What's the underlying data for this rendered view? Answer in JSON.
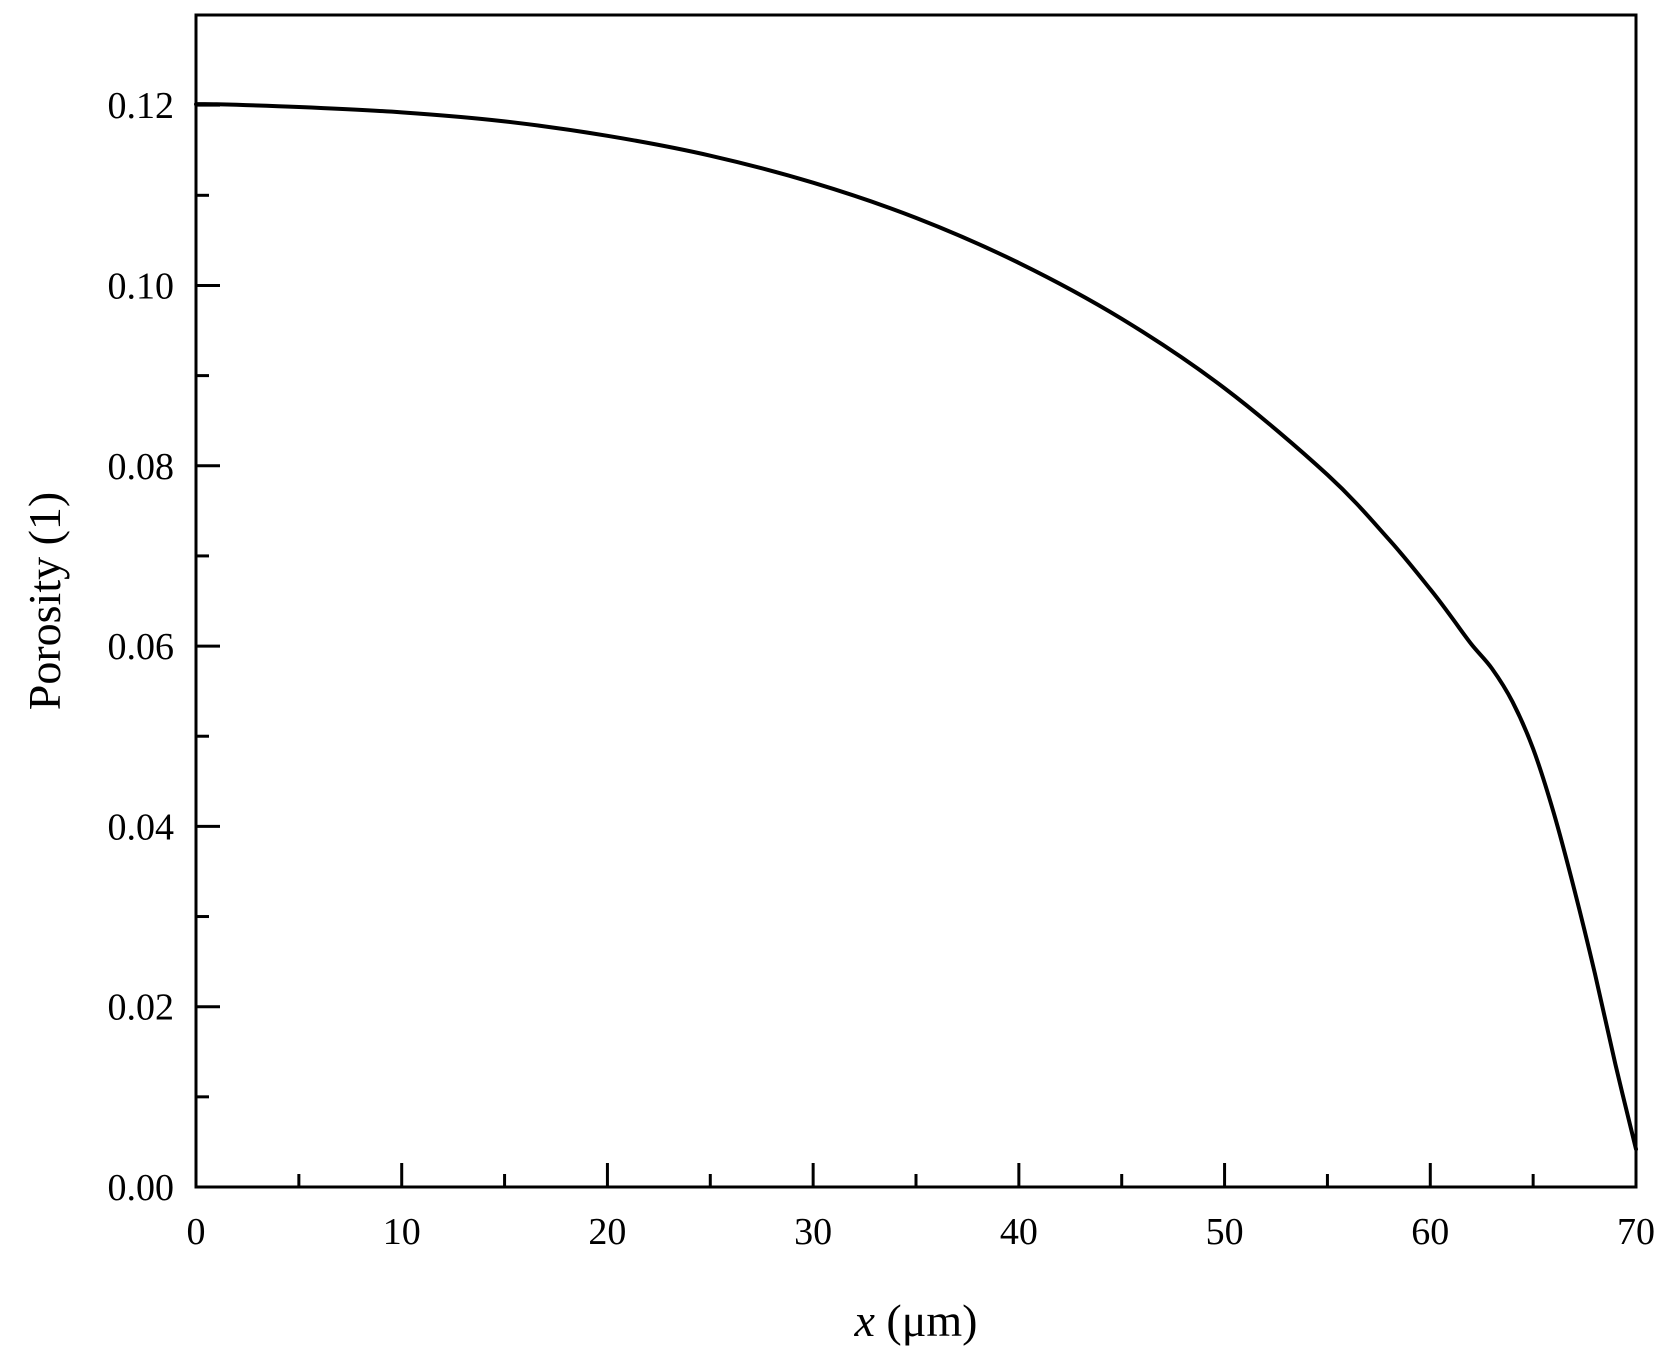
{
  "chart_data": {
    "type": "line",
    "title": "",
    "xlabel_var": "x",
    "xlabel_unit": " (μm)",
    "ylabel": "Porosity (1)",
    "xlim": [
      0,
      70
    ],
    "ylim": [
      0,
      0.13
    ],
    "x_ticks": [
      0,
      10,
      20,
      30,
      40,
      50,
      60,
      70
    ],
    "x_tick_labels": [
      "0",
      "10",
      "20",
      "30",
      "40",
      "50",
      "60",
      "70"
    ],
    "x_minor_ticks": [
      5,
      15,
      25,
      35,
      45,
      55,
      65
    ],
    "y_ticks": [
      0,
      0.02,
      0.04,
      0.06,
      0.08,
      0.1,
      0.12
    ],
    "y_tick_labels": [
      "0.00",
      "0.02",
      "0.04",
      "0.06",
      "0.08",
      "0.10",
      "0.12"
    ],
    "y_minor_ticks": [
      0.01,
      0.03,
      0.05,
      0.07,
      0.09,
      0.11
    ],
    "grid": false,
    "series": [
      {
        "color": "#000000",
        "x": [
          0,
          1,
          5,
          10,
          15,
          20,
          25,
          30,
          35,
          40,
          45,
          50,
          55,
          58,
          60,
          61,
          62,
          63,
          64,
          65,
          66,
          67,
          68,
          69,
          70
        ],
        "y": [
          0.1201,
          0.1201,
          0.1198,
          0.1192,
          0.1182,
          0.1166,
          0.1144,
          0.1114,
          0.1075,
          0.1025,
          0.0963,
          0.0886,
          0.079,
          0.0718,
          0.0663,
          0.0633,
          0.0602,
          0.0575,
          0.0538,
          0.0486,
          0.0415,
          0.033,
          0.0237,
          0.0136,
          0.0042
        ]
      }
    ]
  }
}
